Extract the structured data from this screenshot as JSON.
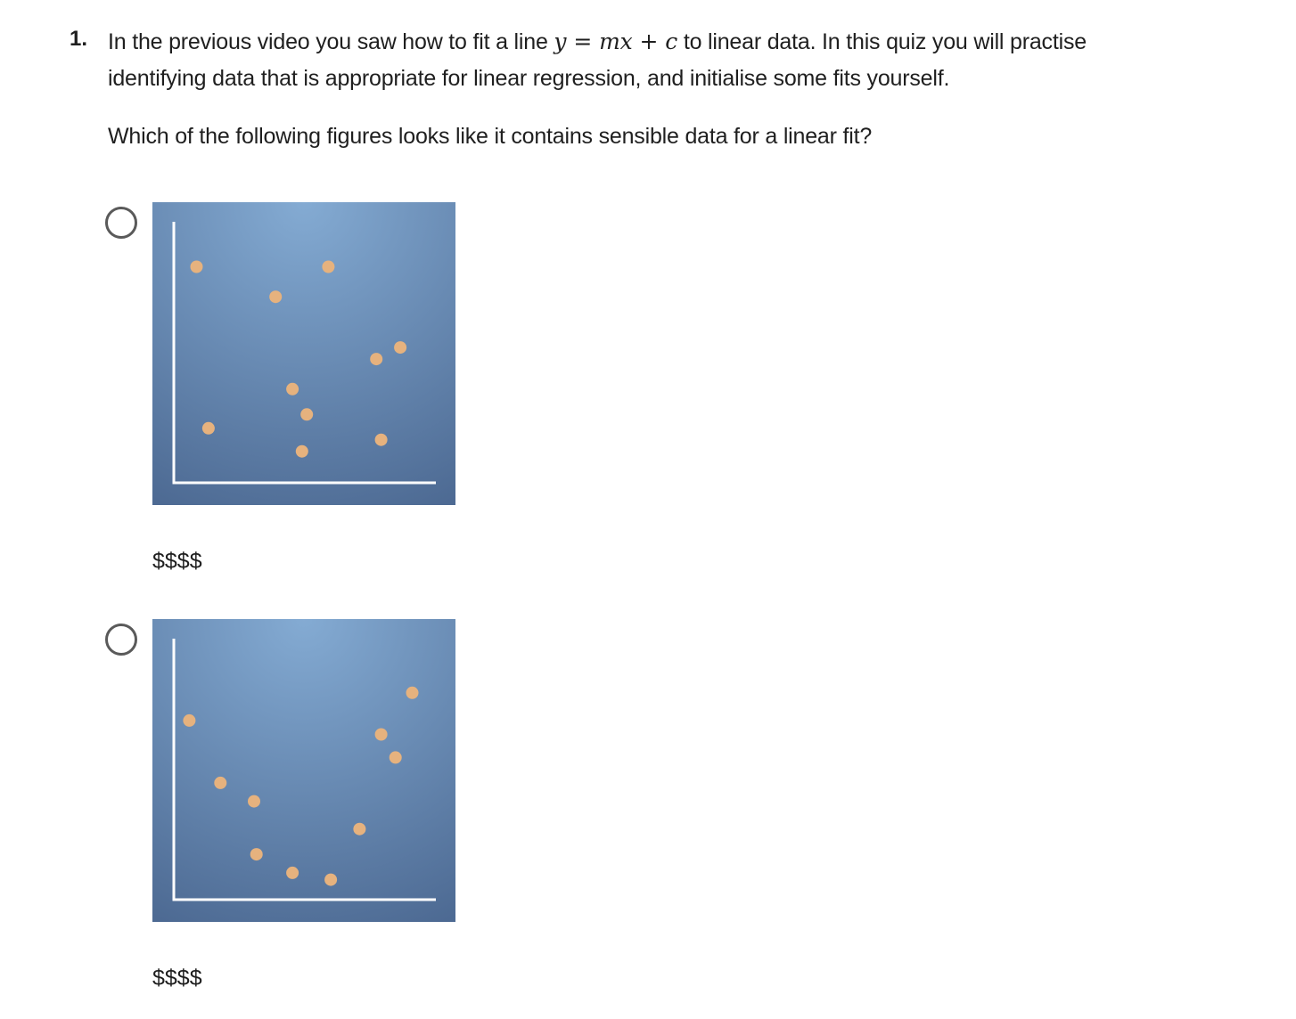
{
  "question": {
    "number": "1.",
    "intro_part1": "In the previous video you saw how to fit a line ",
    "equation": {
      "y": "y",
      "eq": "=",
      "mx": "mx",
      "plus": "+",
      "c": "c"
    },
    "intro_part2": " to linear data. In this quiz you will practise",
    "intro_line2": "identifying data that is appropriate for linear regression, and initialise some fits yourself.",
    "prompt": "Which of the following figures looks like it contains sensible data for a linear fit?"
  },
  "colors": {
    "plot_bg_light": "#84abd3",
    "plot_bg_dark": "#4d6a93",
    "point": "#e6b27e",
    "axis": "#ffffff"
  },
  "options": [
    {
      "caption": "$$$$",
      "chart_data": {
        "type": "scatter",
        "xlim": [
          0,
          10
        ],
        "ylim": [
          0,
          10
        ],
        "points": [
          {
            "x": 0.5,
            "y": 8.9
          },
          {
            "x": 3.8,
            "y": 7.6
          },
          {
            "x": 6.0,
            "y": 8.9
          },
          {
            "x": 9.0,
            "y": 5.4
          },
          {
            "x": 8.0,
            "y": 4.9
          },
          {
            "x": 4.5,
            "y": 3.6
          },
          {
            "x": 5.1,
            "y": 2.5
          },
          {
            "x": 1.0,
            "y": 1.9
          },
          {
            "x": 8.2,
            "y": 1.4
          },
          {
            "x": 4.9,
            "y": 0.9
          }
        ]
      }
    },
    {
      "caption": "$$$$",
      "chart_data": {
        "type": "scatter",
        "xlim": [
          0,
          10
        ],
        "ylim": [
          0,
          10
        ],
        "points": [
          {
            "x": 0.2,
            "y": 7.3
          },
          {
            "x": 1.5,
            "y": 4.6
          },
          {
            "x": 2.9,
            "y": 3.8
          },
          {
            "x": 3.0,
            "y": 1.5
          },
          {
            "x": 4.5,
            "y": 0.7
          },
          {
            "x": 6.1,
            "y": 0.4
          },
          {
            "x": 7.3,
            "y": 2.6
          },
          {
            "x": 8.2,
            "y": 6.7
          },
          {
            "x": 8.8,
            "y": 5.7
          },
          {
            "x": 9.5,
            "y": 8.5
          }
        ]
      }
    }
  ]
}
